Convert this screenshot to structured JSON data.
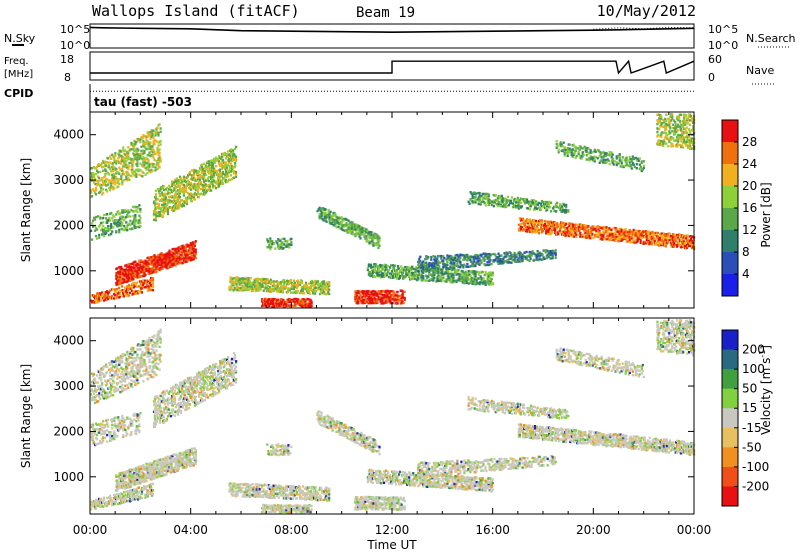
{
  "header": {
    "station": "Wallops Island (fitACF)",
    "beam": "Beam 19",
    "date": "10/May/2012"
  },
  "top_panels": {
    "nsky_label": "N.Sky",
    "nsearch_label": "N.Search",
    "noise_ticks_left": [
      "10^5",
      "10^0"
    ],
    "noise_ticks_right": [
      "10^5",
      "10^0"
    ],
    "freq_label": "Freq.",
    "freq_unit": "[MHz]",
    "freq_ticks": [
      "18",
      "8"
    ],
    "nave_label": "Nave",
    "nave_ticks": [
      "60",
      "0"
    ],
    "cpid_label": "CPID",
    "cpid_value": "tau (fast) -503"
  },
  "colors": {
    "power_scale": [
      "#1a20e8",
      "#2a4fb8",
      "#2f7f6a",
      "#5aa84a",
      "#8fcf3a",
      "#f0b020",
      "#f07010",
      "#e81010"
    ],
    "velocity_scale": [
      "#e81010",
      "#f05018",
      "#f09020",
      "#e8c060",
      "#c8c8c0",
      "#80d040",
      "#40a040",
      "#2a6a80",
      "#1a20c8"
    ]
  },
  "chart_data": [
    {
      "type": "line",
      "name": "noise",
      "x_range_hours": [
        0,
        24
      ],
      "series": [
        {
          "name": "N.Sky",
          "style": "solid",
          "x": [
            0,
            0.5,
            2,
            4,
            6,
            8,
            10,
            12,
            14,
            16,
            18,
            20,
            21,
            22,
            23,
            24
          ],
          "values": [
            4.3,
            4.2,
            4.1,
            4.0,
            3.6,
            3.5,
            3.4,
            3.3,
            3.4,
            3.5,
            3.6,
            3.7,
            3.8,
            3.9,
            4.0,
            4.1
          ]
        },
        {
          "name": "N.Search",
          "style": "dotted",
          "x": [
            20,
            21,
            22,
            23,
            24
          ],
          "values": [
            3.9,
            4.2,
            4.0,
            4.3,
            4.2
          ]
        }
      ],
      "ylim": [
        0,
        5
      ]
    },
    {
      "type": "line",
      "name": "frequency_nave",
      "x_range_hours": [
        0,
        24
      ],
      "series": [
        {
          "name": "Freq",
          "style": "solid",
          "x": [
            0,
            12,
            12,
            20.9,
            21.0,
            21.4,
            21.5,
            22.8,
            22.9,
            24
          ],
          "values": [
            10.5,
            10.5,
            14.7,
            14.7,
            10.5,
            14.7,
            10.5,
            14.7,
            10.5,
            14.7
          ]
        },
        {
          "name": "Nave",
          "style": "dotted",
          "x": [
            0,
            12,
            20,
            22,
            24
          ],
          "values": [
            4,
            4,
            4,
            4,
            4
          ]
        }
      ],
      "ylim_left": [
        8,
        18
      ],
      "ylim_right": [
        0,
        60
      ]
    },
    {
      "type": "heatmap",
      "name": "power",
      "title": "",
      "xlabel": "",
      "ylabel": "Slant Range [km]",
      "colorbar_label": "Power [dB]",
      "colorbar_ticks": [
        "28",
        "24",
        "20",
        "16",
        "12",
        "8",
        "4"
      ],
      "y_ticks": [
        "4000",
        "3000",
        "2000",
        "1000"
      ],
      "xlim_hours": [
        0,
        24
      ],
      "ylim_km": [
        180,
        4500
      ]
    },
    {
      "type": "heatmap",
      "name": "velocity",
      "title": "",
      "xlabel": "Time UT",
      "ylabel": "Slant Range [km]",
      "colorbar_label": "Velocity [m s^-1]",
      "colorbar_ticks": [
        "200",
        "100",
        "50",
        "15",
        "-15",
        "-50",
        "-100",
        "-200"
      ],
      "x_ticks": [
        "00:00",
        "04:00",
        "08:00",
        "12:00",
        "16:00",
        "20:00",
        "00:00"
      ],
      "y_ticks": [
        "4000",
        "3000",
        "2000",
        "1000"
      ],
      "xlim_hours": [
        0,
        24
      ],
      "ylim_km": [
        180,
        4500
      ]
    }
  ]
}
